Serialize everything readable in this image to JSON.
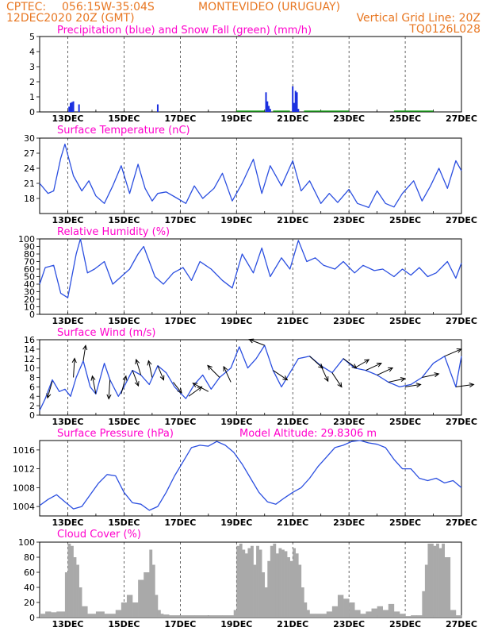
{
  "header": {
    "line1_left": "CPTEC:",
    "line1_coords": "056:15W-35:04S",
    "line1_city": "MONTEVIDEO (URUGUAY)",
    "line2_left": "12DEC2020 20Z (GMT)",
    "line2_right": "Vertical Grid Line: 20Z",
    "line3_right": "TQ0126L028"
  },
  "colors": {
    "header": "#e87722",
    "title": "#ff00cc",
    "line": "#2b4fe0",
    "precip": "#1a2fe0",
    "snow": "#22aa22",
    "cloud": "#a9a9a9"
  },
  "chart_data": [
    {
      "type": "bar",
      "title": "Precipitation (blue) and Snow Fall (green) (mm/h)",
      "x_unit": "days since 12DEC 00Z (tick positions)",
      "ylim": [
        0,
        5
      ],
      "yticks": [
        0,
        1,
        2,
        3,
        4,
        5
      ],
      "xtick_labels": [
        "13DEC",
        "15DEC",
        "17DEC",
        "19DEC",
        "21DEC",
        "23DEC",
        "25DEC",
        "27DEC"
      ],
      "series": [
        {
          "name": "Precipitation",
          "color": "#1a2fe0",
          "x": [
            1.05,
            1.1,
            1.15,
            1.2,
            1.4,
            4.2,
            8.05,
            8.1,
            8.15,
            8.2,
            9.0,
            9.05,
            9.1,
            9.15,
            9.2
          ],
          "values": [
            0.35,
            0.6,
            0.65,
            0.7,
            0.5,
            0.5,
            1.3,
            0.7,
            0.4,
            0.2,
            1.7,
            0.6,
            1.4,
            1.3,
            0.2
          ]
        },
        {
          "name": "Snow Fall",
          "color": "#22aa22",
          "segments": [
            [
              7.0,
              8.0
            ],
            [
              8.3,
              8.9
            ],
            [
              9.4,
              11.0
            ],
            [
              12.6,
              14.0
            ]
          ],
          "values": [
            0.05,
            0.05,
            0.05,
            0.05
          ]
        }
      ]
    },
    {
      "type": "line",
      "title": "Surface Temperature (nC)",
      "ylim": [
        15,
        30
      ],
      "yticks": [
        18,
        21,
        24,
        27,
        30
      ],
      "xtick_labels": [
        "13DEC",
        "15DEC",
        "17DEC",
        "19DEC",
        "21DEC",
        "23DEC",
        "25DEC",
        "27DEC"
      ],
      "x": [
        0.0,
        0.3,
        0.5,
        0.75,
        0.9,
        1.2,
        1.5,
        1.75,
        2.0,
        2.3,
        2.6,
        2.9,
        3.2,
        3.5,
        3.75,
        4.0,
        4.2,
        4.5,
        4.9,
        5.2,
        5.5,
        5.8,
        6.2,
        6.5,
        6.85,
        7.2,
        7.6,
        7.9,
        8.2,
        8.6,
        9.0,
        9.3,
        9.6,
        10.0,
        10.3,
        10.6,
        11.0,
        11.3,
        11.7,
        12.0,
        12.3,
        12.6,
        12.9,
        13.3,
        13.6,
        13.9,
        14.2,
        14.5,
        14.8,
        15.0
      ],
      "values": [
        21.0,
        19.0,
        19.5,
        26.0,
        28.8,
        22.5,
        19.5,
        21.5,
        18.5,
        17.0,
        20.5,
        24.5,
        19.0,
        24.8,
        20.0,
        17.5,
        19.0,
        19.3,
        18.0,
        17.0,
        20.5,
        18.0,
        20.0,
        23.0,
        17.5,
        21.0,
        25.8,
        19.0,
        24.5,
        20.5,
        25.5,
        19.5,
        21.5,
        17.0,
        19.0,
        17.2,
        19.8,
        17.0,
        16.2,
        19.5,
        17.0,
        16.3,
        19.0,
        21.5,
        17.5,
        20.5,
        24.0,
        20.0,
        25.5,
        23.5
      ]
    },
    {
      "type": "line",
      "title": "Relative Humidity (%)",
      "ylim": [
        0,
        100
      ],
      "yticks": [
        0,
        10,
        20,
        30,
        40,
        50,
        60,
        70,
        80,
        90,
        100
      ],
      "xtick_labels": [
        "13DEC",
        "15DEC",
        "17DEC",
        "19DEC",
        "21DEC",
        "23DEC",
        "25DEC",
        "27DEC"
      ],
      "x": [
        0.0,
        0.2,
        0.5,
        0.75,
        1.0,
        1.3,
        1.45,
        1.7,
        1.95,
        2.3,
        2.6,
        2.9,
        3.2,
        3.5,
        3.7,
        4.1,
        4.4,
        4.75,
        5.1,
        5.4,
        5.7,
        6.1,
        6.5,
        6.85,
        7.2,
        7.6,
        7.9,
        8.2,
        8.6,
        8.9,
        9.2,
        9.5,
        9.8,
        10.1,
        10.5,
        10.8,
        11.2,
        11.5,
        11.9,
        12.2,
        12.6,
        12.9,
        13.2,
        13.5,
        13.8,
        14.1,
        14.5,
        14.8,
        15.0
      ],
      "values": [
        40,
        62,
        65,
        28,
        22,
        80,
        100,
        55,
        60,
        70,
        40,
        50,
        60,
        80,
        90,
        50,
        40,
        55,
        62,
        45,
        70,
        60,
        45,
        35,
        80,
        55,
        88,
        50,
        75,
        60,
        98,
        70,
        75,
        65,
        60,
        70,
        55,
        65,
        58,
        60,
        50,
        60,
        52,
        62,
        50,
        55,
        70,
        48,
        68
      ]
    },
    {
      "type": "line",
      "title": "Surface Wind (m/s)",
      "ylim": [
        0,
        16
      ],
      "yticks": [
        0,
        2,
        4,
        6,
        8,
        10,
        12,
        14,
        16
      ],
      "xtick_labels": [
        "13DEC",
        "15DEC",
        "17DEC",
        "19DEC",
        "21DEC",
        "23DEC",
        "25DEC",
        "27DEC"
      ],
      "x": [
        0.0,
        0.2,
        0.45,
        0.7,
        0.9,
        1.1,
        1.3,
        1.55,
        1.8,
        2.0,
        2.3,
        2.5,
        2.8,
        3.0,
        3.3,
        3.6,
        3.9,
        4.2,
        4.5,
        4.8,
        5.2,
        5.5,
        5.8,
        6.1,
        6.4,
        6.8,
        7.1,
        7.4,
        7.7,
        8.0,
        8.3,
        8.6,
        8.9,
        9.2,
        9.6,
        10.0,
        10.4,
        10.8,
        11.2,
        11.6,
        12.0,
        12.4,
        12.8,
        13.2,
        13.6,
        14.0,
        14.4,
        14.8,
        15.0
      ],
      "values": [
        1.0,
        3.5,
        7.5,
        5.0,
        5.5,
        4.0,
        8.0,
        11.5,
        6.0,
        4.5,
        11.0,
        7.5,
        4.0,
        6.0,
        9.5,
        8.5,
        6.5,
        10.5,
        9.0,
        6.0,
        3.5,
        6.5,
        8.5,
        5.5,
        8.0,
        10.0,
        14.5,
        10.0,
        12.0,
        14.8,
        9.5,
        6.0,
        9.0,
        12.0,
        12.5,
        10.5,
        9.0,
        12.0,
        10.0,
        9.5,
        8.5,
        7.0,
        6.0,
        6.5,
        8.0,
        11.0,
        12.5,
        6.0,
        12.5
      ],
      "arrows": {
        "note": "wind vectors along the curve (u,v in m/s scaled)",
        "items": [
          [
            0.45,
            7.2,
            -0.4,
            -1.4
          ],
          [
            1.2,
            8.0,
            0.1,
            1.6
          ],
          [
            1.55,
            11.5,
            0.2,
            1.3
          ],
          [
            2.0,
            4.5,
            -0.3,
            1.5
          ],
          [
            2.5,
            7.5,
            -0.1,
            -1.6
          ],
          [
            2.9,
            4.5,
            0.4,
            1.5
          ],
          [
            3.3,
            9.5,
            0.5,
            -1.3
          ],
          [
            3.6,
            8.5,
            -0.4,
            1.3
          ],
          [
            4.0,
            8.0,
            -0.3,
            1.4
          ],
          [
            4.2,
            10.5,
            0.5,
            -1.2
          ],
          [
            4.75,
            7.0,
            0.7,
            -0.9
          ],
          [
            5.3,
            4.0,
            1.1,
            0.8
          ],
          [
            6.0,
            5.0,
            -1.3,
            0.7
          ],
          [
            6.4,
            8.0,
            -1.0,
            1.0
          ],
          [
            6.8,
            7.0,
            -0.6,
            1.3
          ],
          [
            8.0,
            14.8,
            -1.3,
            0.5
          ],
          [
            8.3,
            9.5,
            1.2,
            -0.8
          ],
          [
            9.6,
            12.5,
            1.1,
            -1.0
          ],
          [
            10.0,
            10.5,
            0.6,
            -1.3
          ],
          [
            10.4,
            9.0,
            0.8,
            -1.2
          ],
          [
            10.8,
            12.0,
            1.1,
            -0.8
          ],
          [
            11.2,
            10.0,
            1.2,
            0.7
          ],
          [
            11.6,
            9.5,
            1.3,
            0.6
          ],
          [
            12.0,
            8.5,
            1.3,
            0.6
          ],
          [
            12.4,
            7.0,
            1.4,
            0.3
          ],
          [
            13.0,
            6.0,
            1.3,
            0.2
          ],
          [
            13.6,
            8.0,
            1.4,
            0.3
          ],
          [
            14.4,
            12.5,
            1.4,
            0.6
          ],
          [
            14.8,
            6.0,
            1.5,
            0.2
          ]
        ]
      }
    },
    {
      "type": "line",
      "title": "Surface Pressure (hPa)",
      "annotation": "Model Altitude: 29.8306 m",
      "ylim": [
        1002,
        1018
      ],
      "yticks": [
        1004,
        1008,
        1012,
        1016
      ],
      "xtick_labels": [
        "13DEC",
        "15DEC",
        "17DEC",
        "19DEC",
        "21DEC",
        "23DEC",
        "25DEC",
        "27DEC"
      ],
      "x": [
        0.0,
        0.3,
        0.6,
        0.9,
        1.2,
        1.5,
        1.8,
        2.1,
        2.4,
        2.7,
        3.0,
        3.3,
        3.6,
        3.9,
        4.2,
        4.5,
        4.8,
        5.1,
        5.4,
        5.7,
        6.0,
        6.3,
        6.6,
        6.9,
        7.2,
        7.5,
        7.8,
        8.1,
        8.4,
        8.7,
        9.0,
        9.3,
        9.6,
        9.9,
        10.2,
        10.5,
        10.8,
        11.1,
        11.4,
        11.7,
        12.0,
        12.3,
        12.6,
        12.9,
        13.2,
        13.5,
        13.8,
        14.1,
        14.4,
        14.7,
        15.0
      ],
      "values": [
        1004.2,
        1005.5,
        1006.5,
        1005.0,
        1003.5,
        1004.0,
        1006.5,
        1009.0,
        1010.8,
        1010.5,
        1007.0,
        1004.8,
        1004.5,
        1003.2,
        1004.0,
        1007.0,
        1010.5,
        1013.5,
        1016.5,
        1017.0,
        1016.8,
        1017.8,
        1017.0,
        1015.5,
        1013.0,
        1010.0,
        1007.0,
        1005.0,
        1004.5,
        1005.8,
        1007.0,
        1008.0,
        1010.0,
        1012.5,
        1014.5,
        1016.5,
        1017.0,
        1017.8,
        1018.0,
        1017.5,
        1017.2,
        1016.5,
        1014.0,
        1012.0,
        1012.0,
        1010.0,
        1009.5,
        1010.0,
        1009.0,
        1009.5,
        1008.0
      ]
    },
    {
      "type": "bar",
      "title": "Cloud Cover (%)",
      "ylim": [
        0,
        100
      ],
      "yticks": [
        0,
        20,
        40,
        60,
        80,
        100
      ],
      "xtick_labels": [
        "13DEC",
        "15DEC",
        "17DEC",
        "19DEC",
        "21DEC",
        "23DEC",
        "25DEC",
        "27DEC"
      ],
      "x": [
        0.0,
        0.2,
        0.4,
        0.6,
        0.9,
        1.0,
        1.1,
        1.2,
        1.3,
        1.4,
        1.5,
        1.7,
        2.0,
        2.3,
        2.7,
        2.9,
        3.1,
        3.3,
        3.5,
        3.7,
        3.9,
        4.0,
        4.1,
        4.2,
        4.3,
        4.4,
        4.6,
        5.0,
        5.5,
        6.0,
        6.5,
        6.9,
        7.0,
        7.1,
        7.2,
        7.3,
        7.4,
        7.5,
        7.6,
        7.7,
        7.8,
        7.9,
        8.0,
        8.1,
        8.2,
        8.3,
        8.4,
        8.5,
        8.6,
        8.7,
        8.8,
        8.9,
        9.0,
        9.1,
        9.2,
        9.3,
        9.4,
        9.5,
        9.6,
        9.8,
        10.0,
        10.2,
        10.4,
        10.6,
        10.8,
        11.0,
        11.2,
        11.4,
        11.6,
        11.8,
        12.0,
        12.2,
        12.4,
        12.6,
        12.8,
        13.0,
        13.2,
        13.4,
        13.6,
        13.7,
        13.8,
        13.9,
        14.0,
        14.1,
        14.2,
        14.3,
        14.4,
        14.6,
        14.8,
        15.0
      ],
      "values": [
        5,
        8,
        7,
        8,
        60,
        98,
        95,
        80,
        70,
        40,
        15,
        5,
        8,
        5,
        10,
        20,
        30,
        20,
        50,
        60,
        90,
        70,
        30,
        10,
        5,
        4,
        3,
        3,
        3,
        3,
        3,
        10,
        95,
        98,
        90,
        85,
        92,
        95,
        70,
        95,
        90,
        60,
        40,
        75,
        95,
        98,
        85,
        92,
        90,
        88,
        80,
        75,
        92,
        85,
        70,
        40,
        20,
        10,
        5,
        5,
        5,
        8,
        15,
        30,
        25,
        20,
        10,
        5,
        8,
        12,
        15,
        10,
        18,
        8,
        5,
        2,
        3,
        3,
        35,
        70,
        98,
        98,
        95,
        98,
        92,
        98,
        80,
        10,
        3,
        2
      ]
    }
  ]
}
